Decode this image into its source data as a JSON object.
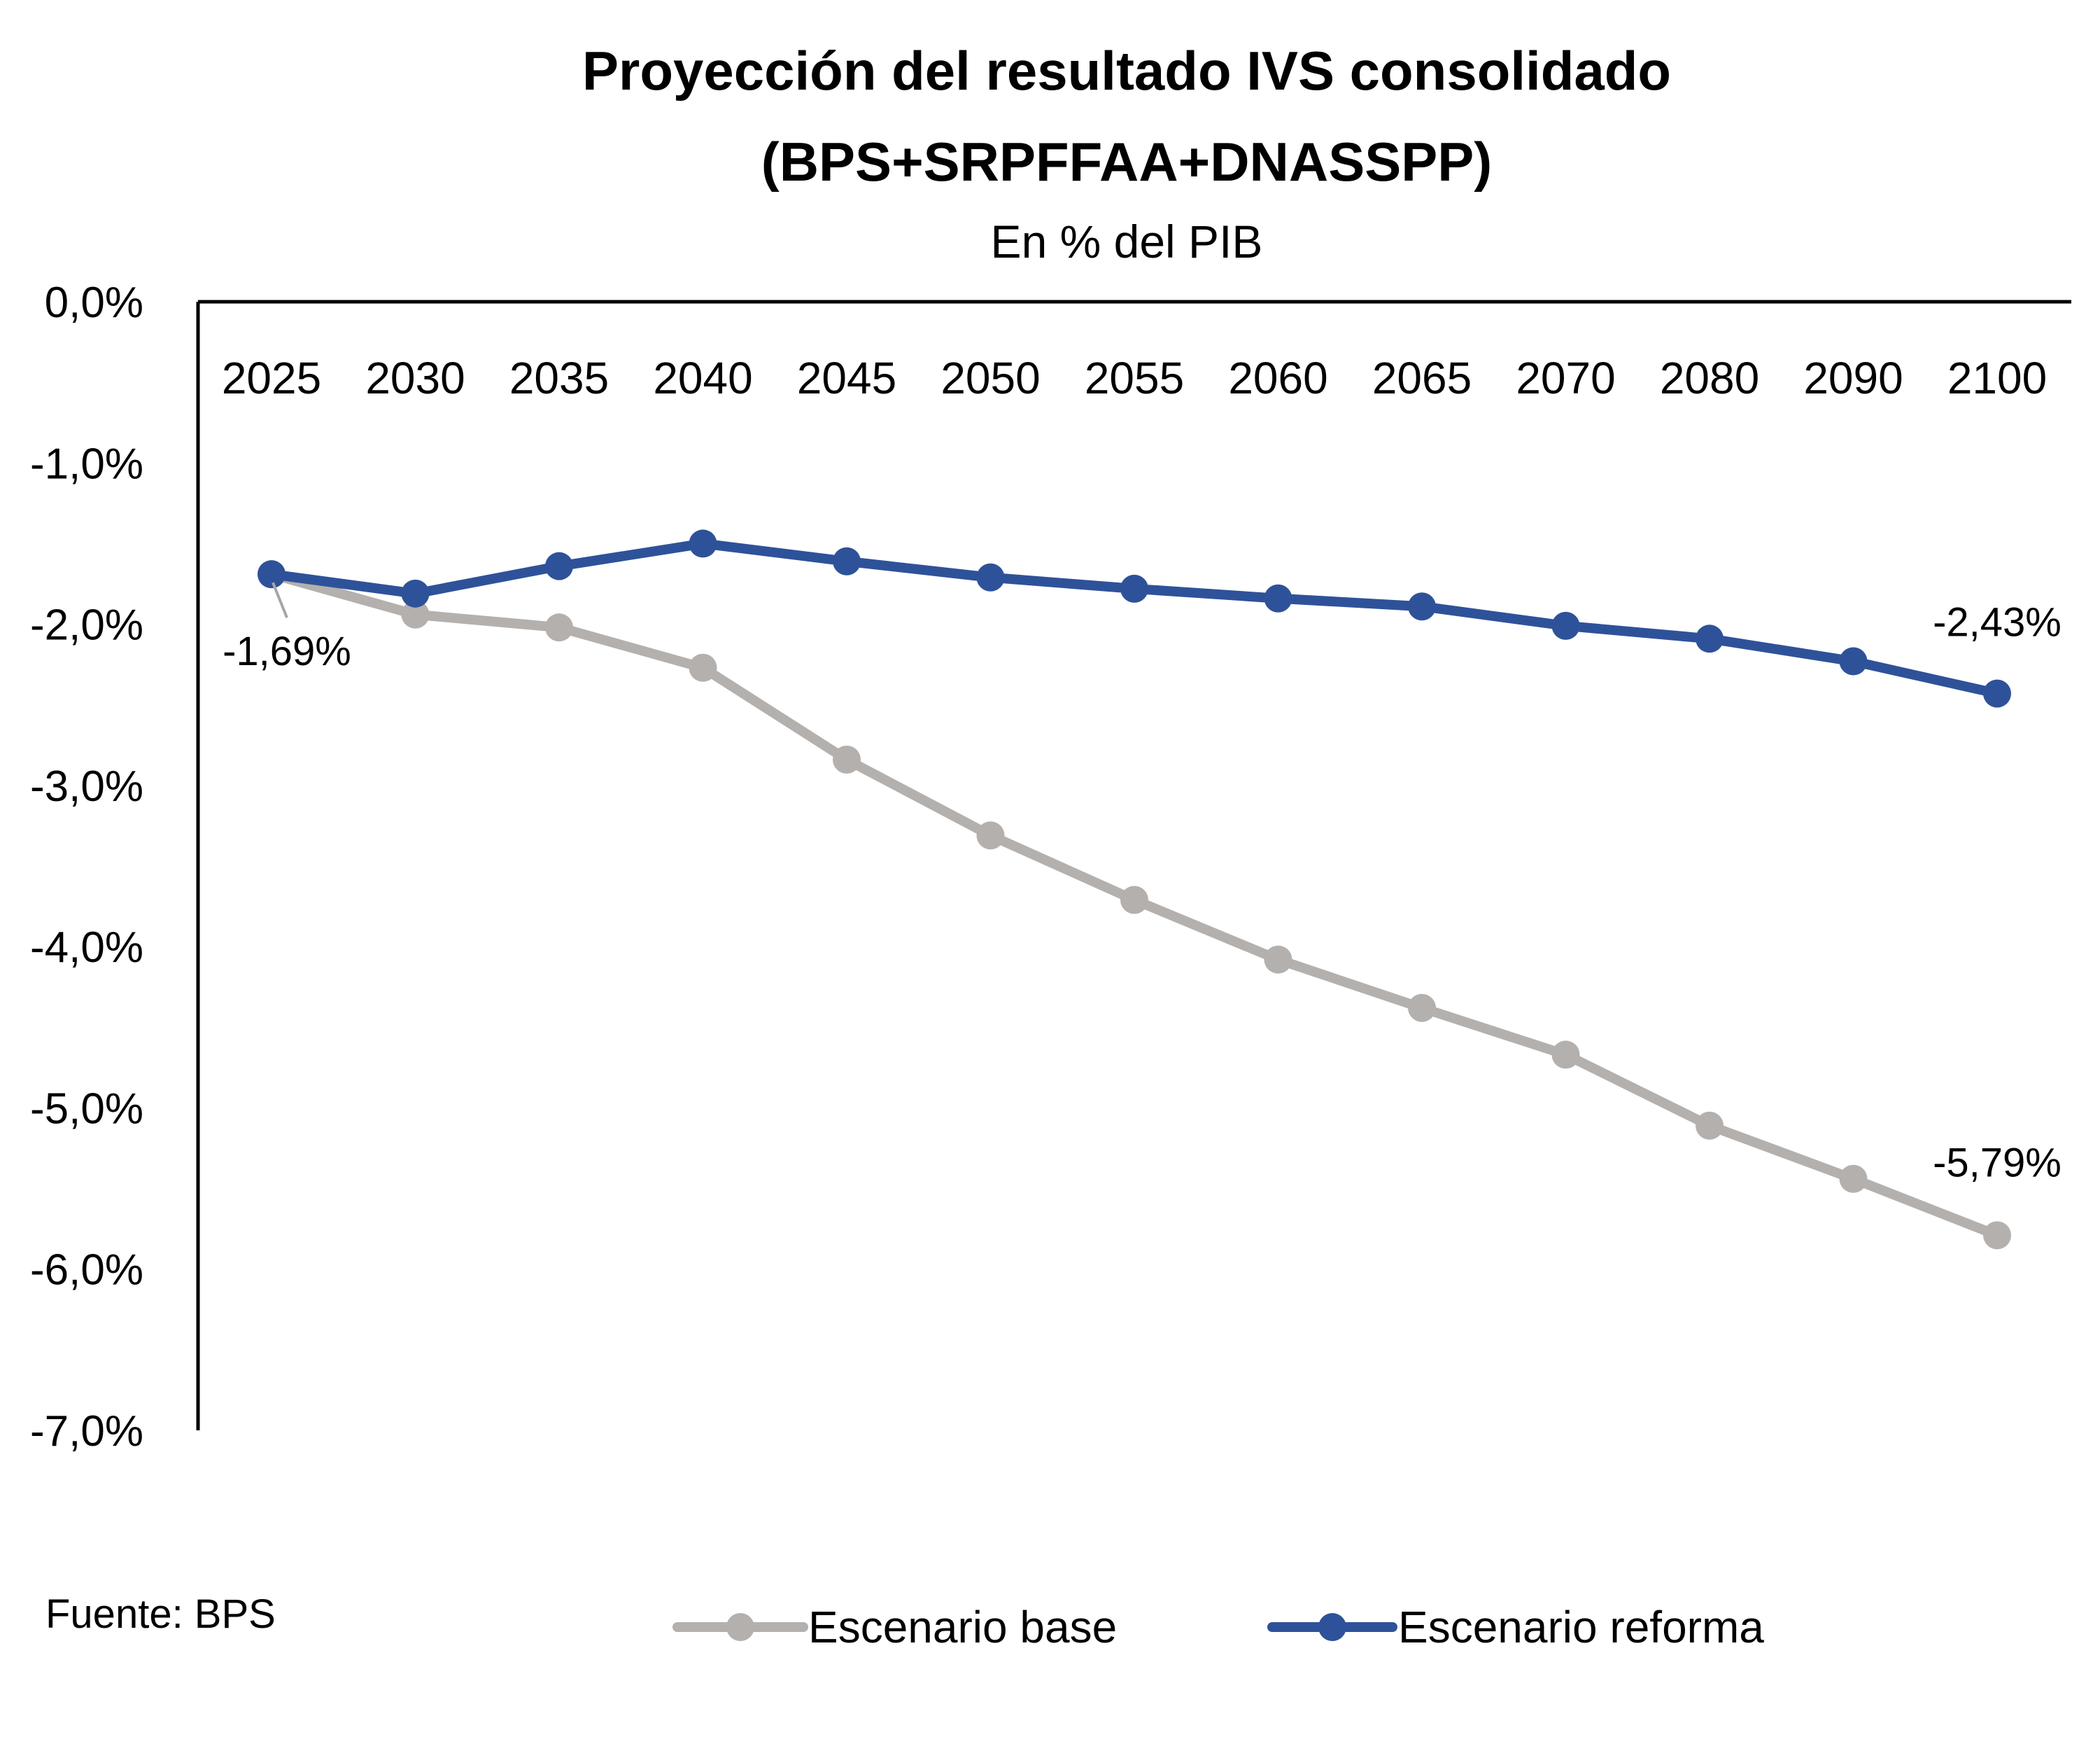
{
  "chart_data": {
    "type": "line",
    "title_line1": "Proyección del resultado IVS consolidado",
    "title_line2": "(BPS+SRPFFAA+DNASSPP)",
    "subtitle": "En % del PIB",
    "categories": [
      "2025",
      "2030",
      "2035",
      "2040",
      "2045",
      "2050",
      "2055",
      "2060",
      "2065",
      "2070",
      "2080",
      "2090",
      "2100"
    ],
    "y_ticks": [
      "0,0%",
      "-1,0%",
      "-2,0%",
      "-3,0%",
      "-4,0%",
      "-5,0%",
      "-6,0%",
      "-7,0%"
    ],
    "ylim": [
      -7.0,
      0.0
    ],
    "series": [
      {
        "name": "Escenario base",
        "color": "#b3b0ae",
        "values": [
          -1.69,
          -1.94,
          -2.02,
          -2.27,
          -2.84,
          -3.31,
          -3.71,
          -4.08,
          -4.38,
          -4.67,
          -5.11,
          -5.44,
          -5.79
        ]
      },
      {
        "name": "Escenario reforma",
        "color": "#2e5299",
        "values": [
          -1.69,
          -1.81,
          -1.64,
          -1.5,
          -1.61,
          -1.71,
          -1.78,
          -1.84,
          -1.89,
          -2.01,
          -2.09,
          -2.23,
          -2.43
        ]
      }
    ],
    "data_labels": [
      {
        "series": 0,
        "index": 0,
        "text": "-1,69%"
      },
      {
        "series": 1,
        "index": 12,
        "text": "-2,43%"
      },
      {
        "series": 0,
        "index": 12,
        "text": "-5,79%"
      }
    ],
    "legend": [
      "Escenario base",
      "Escenario reforma"
    ],
    "legend_position": "bottom",
    "grid": false
  },
  "footer": {
    "source": "Fuente: BPS"
  }
}
